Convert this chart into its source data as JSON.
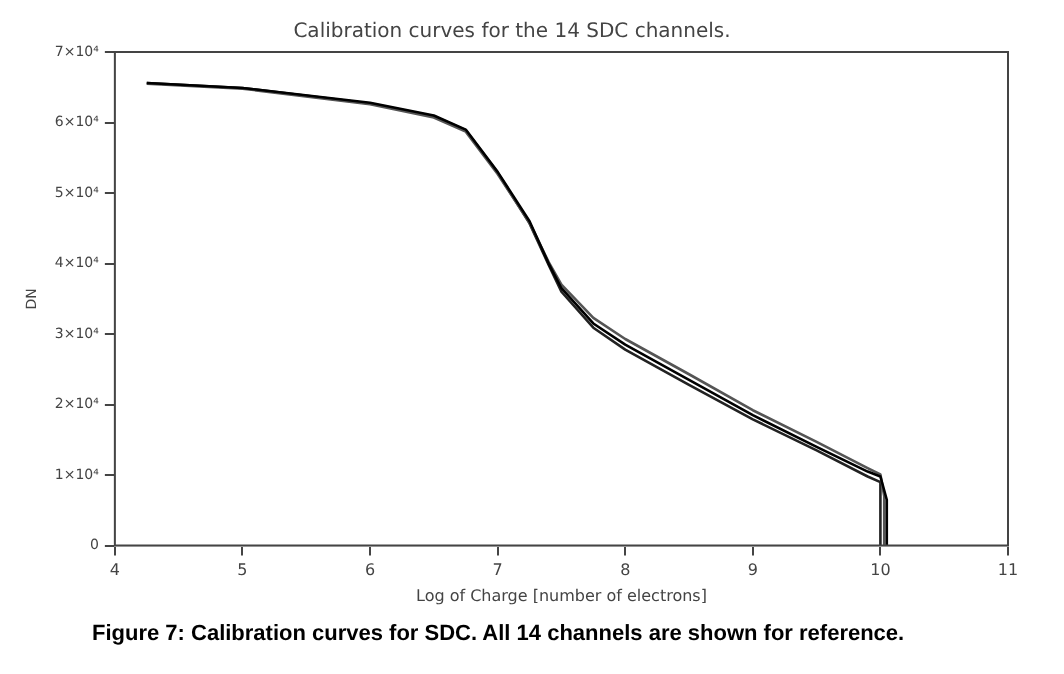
{
  "chart_data": {
    "type": "line",
    "title": "Calibration curves for the 14 SDC channels.",
    "xlabel": "Log of Charge [number of electrons]",
    "ylabel": "DN",
    "annotations": [
      "Figure 7:  Calibration curves for SDC.  All 14 channels are shown for reference."
    ],
    "series": [
      {
        "color": "#000000",
        "x": [
          4.25,
          5,
          6,
          6.5,
          6.75,
          7,
          7.25,
          7.4,
          7.5,
          7.75,
          8,
          8.5,
          9,
          9.5,
          9.9,
          10,
          10.05,
          10.05
        ],
        "values": [
          65600,
          64900,
          62800,
          61000,
          59000,
          53000,
          46000,
          40000,
          36500,
          31500,
          28500,
          23500,
          18500,
          14000,
          10500,
          9800,
          6500,
          0
        ]
      },
      {
        "color": "#555555",
        "x": [
          4.25,
          5,
          6,
          6.5,
          6.75,
          7,
          7.25,
          7.4,
          7.5,
          7.75,
          8,
          8.5,
          9,
          9.5,
          9.9,
          10,
          10.03,
          10.03
        ],
        "values": [
          65500,
          64800,
          62600,
          60700,
          58700,
          52700,
          45800,
          40200,
          37000,
          32300,
          29300,
          24300,
          19200,
          14700,
          11000,
          10100,
          7000,
          0
        ]
      },
      {
        "color": "#222222",
        "x": [
          4.25,
          5,
          6,
          6.5,
          6.75,
          7,
          7.25,
          7.4,
          7.5,
          7.75,
          8,
          8.5,
          9,
          9.5,
          9.9,
          10,
          10.0
        ],
        "values": [
          65600,
          64900,
          62700,
          60900,
          58900,
          52900,
          45700,
          39800,
          36000,
          30900,
          27800,
          22800,
          17900,
          13500,
          9800,
          9000,
          0
        ]
      }
    ],
    "xlim": [
      4,
      11
    ],
    "xticks": [
      4,
      5,
      6,
      7,
      8,
      9,
      10,
      11
    ],
    "ylim": [
      0,
      70000
    ],
    "yticks": [
      0,
      {
        "value": 10000,
        "label": "1×10⁴"
      },
      {
        "value": 20000,
        "label": "2×10⁴"
      },
      {
        "value": 30000,
        "label": "3×10⁴"
      },
      {
        "value": 40000,
        "label": "4×10⁴"
      },
      {
        "value": 50000,
        "label": "5×10⁴"
      },
      {
        "value": 60000,
        "label": "6×10⁴"
      },
      {
        "value": 70000,
        "label": "7×10⁴"
      }
    ],
    "grid": false,
    "legend": false,
    "marker": "none",
    "line_style": "solid"
  }
}
